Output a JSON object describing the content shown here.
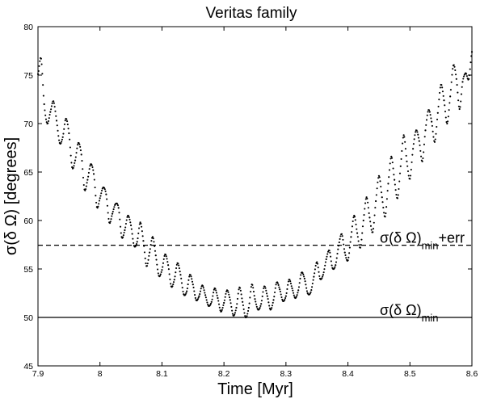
{
  "chart_data": {
    "type": "scatter",
    "title": "Veritas family",
    "xlabel": "Time [Myr]",
    "ylabel": "σ(δ Ω) [degrees]",
    "xlim": [
      7.9,
      8.6
    ],
    "ylim": [
      45,
      80
    ],
    "xticks": [
      7.9,
      8,
      8.1,
      8.2,
      8.3,
      8.4,
      8.5,
      8.6
    ],
    "xtick_labels": [
      "7.9",
      "8",
      "8.1",
      "8.2",
      "8.3",
      "8.4",
      "8.5",
      "8.6"
    ],
    "yticks": [
      45,
      50,
      55,
      60,
      65,
      70,
      75,
      80
    ],
    "ytick_labels": [
      "45",
      "50",
      "55",
      "60",
      "65",
      "70",
      "75",
      "80"
    ],
    "grid": false,
    "marker": "dots",
    "series": [
      {
        "style": "dotted",
        "x": [
          7.9,
          7.905,
          7.91,
          7.915,
          7.92,
          7.925,
          7.93,
          7.935,
          7.94,
          7.945,
          7.95,
          7.955,
          7.96,
          7.965,
          7.97,
          7.975,
          7.98,
          7.985,
          7.99,
          7.995,
          8.0,
          8.005,
          8.01,
          8.015,
          8.02,
          8.025,
          8.03,
          8.035,
          8.04,
          8.045,
          8.05,
          8.055,
          8.06,
          8.065,
          8.07,
          8.075,
          8.08,
          8.085,
          8.09,
          8.095,
          8.1,
          8.105,
          8.11,
          8.115,
          8.12,
          8.125,
          8.13,
          8.135,
          8.14,
          8.145,
          8.15,
          8.155,
          8.16,
          8.165,
          8.17,
          8.175,
          8.18,
          8.185,
          8.19,
          8.195,
          8.2,
          8.205,
          8.21,
          8.215,
          8.22,
          8.225,
          8.23,
          8.235,
          8.24,
          8.245,
          8.25,
          8.255,
          8.26,
          8.265,
          8.27,
          8.275,
          8.28,
          8.285,
          8.29,
          8.295,
          8.3,
          8.305,
          8.31,
          8.315,
          8.32,
          8.325,
          8.33,
          8.335,
          8.34,
          8.345,
          8.35,
          8.355,
          8.36,
          8.365,
          8.37,
          8.375,
          8.38,
          8.385,
          8.39,
          8.395,
          8.4,
          8.405,
          8.41,
          8.415,
          8.42,
          8.425,
          8.43,
          8.435,
          8.44,
          8.445,
          8.45,
          8.455,
          8.46,
          8.465,
          8.47,
          8.475,
          8.48,
          8.485,
          8.49,
          8.495,
          8.5,
          8.505,
          8.51,
          8.515,
          8.52,
          8.525,
          8.53,
          8.535,
          8.54,
          8.545,
          8.55,
          8.555,
          8.56,
          8.565,
          8.57,
          8.575,
          8.58,
          8.585,
          8.59,
          8.595,
          8.6
        ],
        "y": [
          75.1,
          76.7,
          72.0,
          70.0,
          71.2,
          72.3,
          70.3,
          68.0,
          68.6,
          70.5,
          69.0,
          65.5,
          66.2,
          68.0,
          66.8,
          63.2,
          64.2,
          65.8,
          64.8,
          61.4,
          62.3,
          63.4,
          62.7,
          59.8,
          60.7,
          61.7,
          61.3,
          58.3,
          59.0,
          60.5,
          59.5,
          57.4,
          57.8,
          59.8,
          57.9,
          55.3,
          56.7,
          58.3,
          56.4,
          54.3,
          54.9,
          56.5,
          55.4,
          53.2,
          53.9,
          55.6,
          54.4,
          52.4,
          52.7,
          54.4,
          53.4,
          51.8,
          52.2,
          53.3,
          52.3,
          51.2,
          51.6,
          53.0,
          52.0,
          50.6,
          51.5,
          52.8,
          51.8,
          50.2,
          51.0,
          53.1,
          51.6,
          50.0,
          51.0,
          53.4,
          51.9,
          50.8,
          51.4,
          53.2,
          52.2,
          50.8,
          51.8,
          53.6,
          52.9,
          51.7,
          52.2,
          53.9,
          53.0,
          52.0,
          52.8,
          54.6,
          54.0,
          52.5,
          52.6,
          54.2,
          55.7,
          54.0,
          54.4,
          56.0,
          56.9,
          55.1,
          55.4,
          57.4,
          58.6,
          56.7,
          55.9,
          58.3,
          60.5,
          58.7,
          57.2,
          60.0,
          62.4,
          60.3,
          58.8,
          62.0,
          64.6,
          62.4,
          60.4,
          63.8,
          66.6,
          64.2,
          62.3,
          65.6,
          68.8,
          66.1,
          64.3,
          67.4,
          69.3,
          68.2,
          66.1,
          69.3,
          71.4,
          70.2,
          68.1,
          71.1,
          74.0,
          72.4,
          70.0,
          72.8,
          76.0,
          74.6,
          71.5,
          74.3,
          75.2,
          74.6,
          77.4
        ]
      }
    ],
    "reference_lines": [
      {
        "y": 50.0,
        "style": "solid",
        "label_main": "σ(δ Ω)",
        "label_sub": "min",
        "label_suffix": ""
      },
      {
        "y": 57.45,
        "style": "dashed",
        "label_main": "σ(δ Ω)",
        "label_sub": "min",
        "label_suffix": "+err"
      }
    ]
  }
}
